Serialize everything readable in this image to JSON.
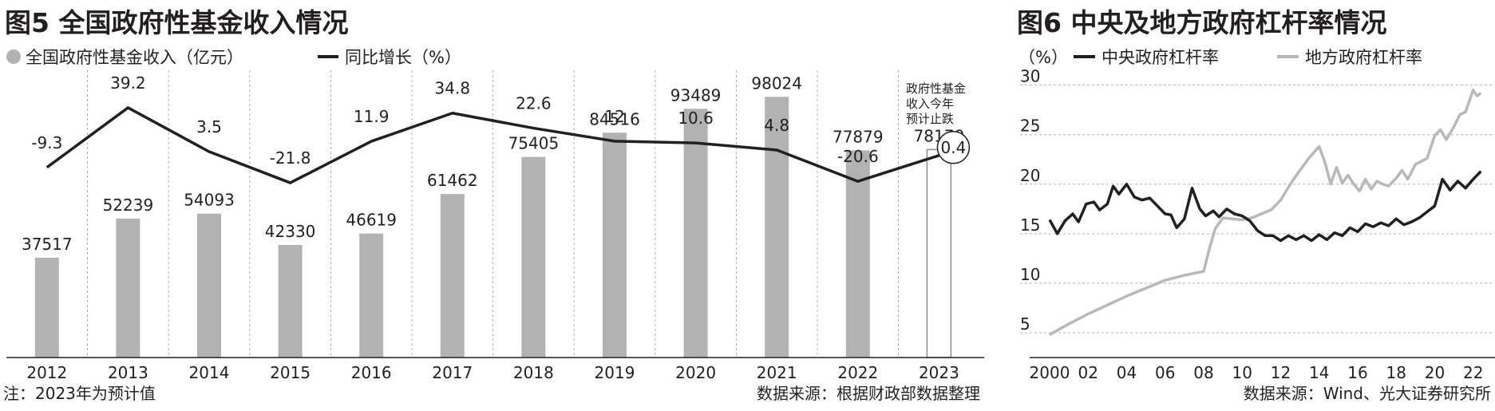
{
  "colors": {
    "bar": "#b2b2b2",
    "line": "#231f20",
    "local_line": "#b8b8b8",
    "grid": "#b0b0b0",
    "text": "#231f20"
  },
  "left_chart": {
    "title": "图5 全国政府性基金收入情况",
    "legend_bar": "全国政府性基金收入（亿元）",
    "legend_line": "同比增长（%）",
    "annotation": [
      "政府性基金",
      "收入今年",
      "预计止跌"
    ],
    "note": "注：2023年为预计值",
    "source": "数据来源：根据财政部数据整理"
  },
  "right_chart": {
    "title": "图6 中央及地方政府杠杆率情况",
    "unit_label": "（%）",
    "legend_central": "中央政府杠杆率",
    "legend_local": "地方政府杠杆率",
    "source": "数据来源：Wind、光大证券研究所"
  },
  "chart_data": [
    {
      "type": "bar",
      "categories": [
        "2012",
        "2013",
        "2014",
        "2015",
        "2016",
        "2017",
        "2018",
        "2019",
        "2020",
        "2021",
        "2022",
        "2023"
      ],
      "series": [
        {
          "name": "全国政府性基金收入（亿元）",
          "type": "bar",
          "values": [
            37517,
            52239,
            54093,
            42330,
            46619,
            61462,
            75405,
            84516,
            93489,
            98024,
            77879,
            78170
          ],
          "value_labels": [
            "37517",
            "52239",
            "54093",
            "42330",
            "46619",
            "61462",
            "75405",
            "84516",
            "93489",
            "98024",
            "77879",
            "78170"
          ],
          "hollow_last": true
        },
        {
          "name": "同比增长（%）",
          "type": "line",
          "values": [
            -9.3,
            39.2,
            3.5,
            -21.8,
            11.9,
            34.8,
            22.6,
            12,
            10.6,
            4.8,
            -20.6,
            0.4
          ],
          "value_labels": [
            "-9.3",
            "39.2",
            "3.5",
            "-21.8",
            "11.9",
            "34.8",
            "22.6",
            "12",
            "10.6",
            "4.8",
            "-20.6",
            "0.4"
          ]
        }
      ],
      "grid": "vertical-dashed"
    },
    {
      "type": "line",
      "x_tick_labels": [
        "2000",
        "02",
        "04",
        "06",
        "08",
        "10",
        "12",
        "14",
        "16",
        "18",
        "20",
        "22"
      ],
      "y_ticks": [
        "5",
        "10",
        "15",
        "20",
        "25",
        "30"
      ],
      "ylim": [
        2.5,
        31.5
      ],
      "xlim": [
        2000,
        2022.8
      ],
      "grid": "horizontal-dashed",
      "series": [
        {
          "name": "中央政府杠杆率",
          "x": [
            2000,
            2000.4,
            2000.8,
            2001.2,
            2001.5,
            2001.9,
            2002.3,
            2002.6,
            2003,
            2003.3,
            2003.6,
            2004,
            2004.4,
            2004.8,
            2005.2,
            2005.6,
            2006,
            2006.3,
            2006.6,
            2007,
            2007.4,
            2007.8,
            2008.1,
            2008.5,
            2008.8,
            2009.2,
            2009.6,
            2010,
            2010.4,
            2010.8,
            2011.2,
            2011.6,
            2012,
            2012.4,
            2012.8,
            2013.2,
            2013.6,
            2014,
            2014.4,
            2014.8,
            2015.2,
            2015.6,
            2016,
            2016.4,
            2016.8,
            2017.2,
            2017.6,
            2018,
            2018.4,
            2018.8,
            2019.2,
            2019.6,
            2020,
            2020.4,
            2020.8,
            2021.2,
            2021.6,
            2022,
            2022.4
          ],
          "values": [
            16.4,
            15.0,
            16.3,
            17.0,
            16.2,
            18.0,
            18.2,
            17.4,
            18.0,
            19.8,
            19.0,
            20.0,
            18.7,
            18.4,
            18.6,
            17.8,
            17.0,
            16.9,
            15.6,
            16.5,
            19.6,
            17.5,
            16.8,
            17.3,
            16.7,
            17.5,
            17.0,
            16.8,
            16.3,
            15.3,
            14.8,
            14.8,
            14.3,
            14.8,
            14.4,
            14.8,
            14.3,
            14.9,
            14.4,
            15.1,
            14.8,
            15.6,
            15.2,
            16.0,
            15.7,
            16.1,
            15.8,
            16.5,
            15.9,
            16.2,
            16.6,
            17.2,
            17.8,
            20.5,
            19.4,
            20.3,
            19.6,
            20.5,
            21.3
          ]
        },
        {
          "name": "地方政府杠杆率",
          "x": [
            2000,
            2001,
            2002,
            2003,
            2004,
            2005,
            2006,
            2007,
            2008,
            2008.3,
            2008.6,
            2009,
            2009.5,
            2010,
            2010.5,
            2011,
            2011.5,
            2012,
            2012.5,
            2013,
            2013.5,
            2014,
            2014.3,
            2014.6,
            2014.9,
            2015.2,
            2015.5,
            2015.8,
            2016.1,
            2016.4,
            2016.7,
            2017,
            2017.3,
            2017.6,
            2018,
            2018.3,
            2018.6,
            2019,
            2019.3,
            2019.6,
            2020,
            2020.3,
            2020.6,
            2021,
            2021.3,
            2021.6,
            2022,
            2022.2,
            2022.4
          ],
          "values": [
            4.8,
            5.9,
            6.9,
            7.8,
            8.7,
            9.5,
            10.3,
            10.8,
            11.2,
            13.5,
            15.5,
            16.6,
            16.5,
            16.4,
            16.6,
            17.0,
            17.4,
            18.4,
            20.0,
            21.4,
            22.7,
            23.8,
            22.2,
            20.0,
            21.7,
            20.1,
            20.9,
            20.0,
            19.3,
            20.5,
            19.5,
            20.3,
            20.0,
            19.8,
            20.6,
            21.4,
            20.5,
            22.0,
            22.3,
            22.6,
            24.9,
            25.5,
            24.5,
            25.8,
            27.0,
            27.3,
            29.5,
            28.9,
            29.2
          ]
        }
      ]
    }
  ]
}
